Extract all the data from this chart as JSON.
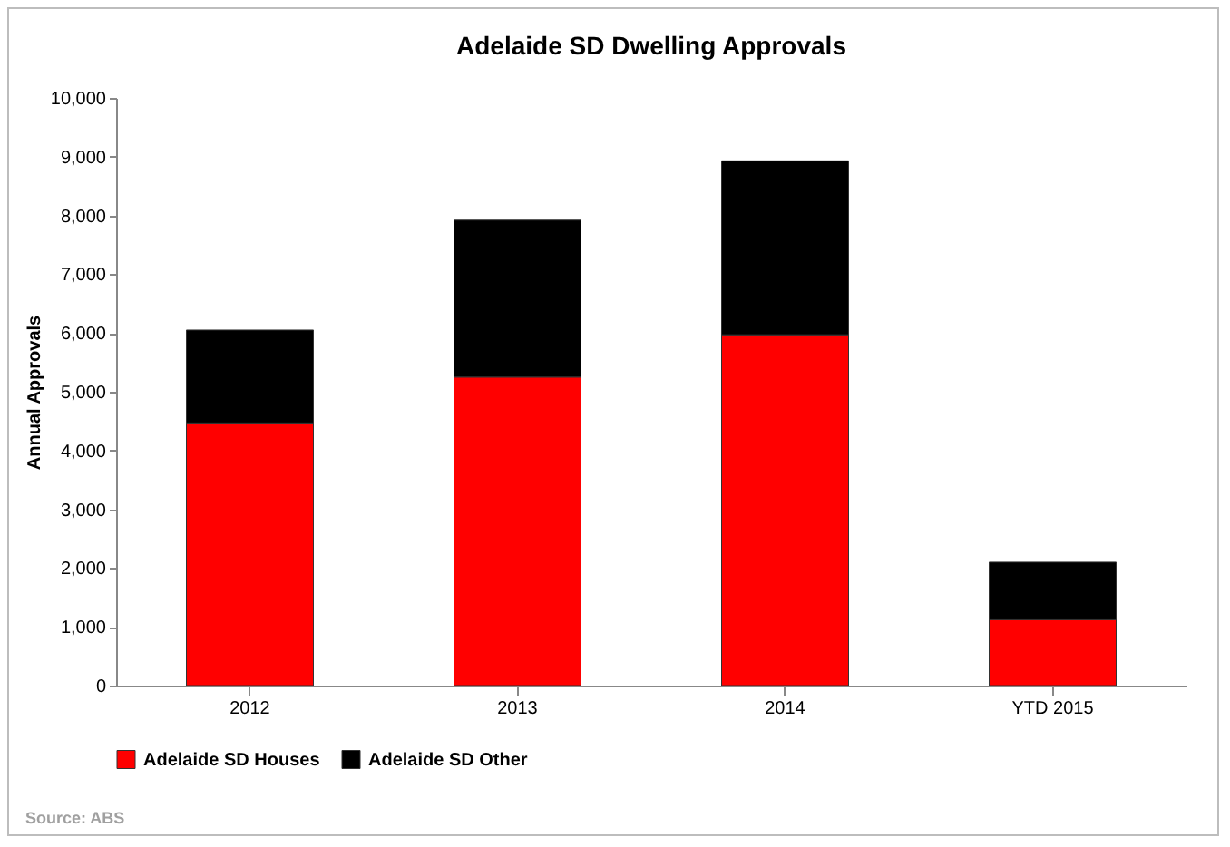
{
  "chart_data": {
    "type": "bar",
    "title": "Adelaide SD Dwelling Approvals",
    "ylabel": "Annual Approvals",
    "categories": [
      "2012",
      "2013",
      "2014",
      "YTD 2015"
    ],
    "stacked": true,
    "series": [
      {
        "name": "Adelaide SD Houses",
        "color": "#ff0000",
        "values": [
          4470,
          5250,
          5970,
          1120
        ]
      },
      {
        "name": "Adelaide SD Other",
        "color": "#000000",
        "values": [
          1580,
          2670,
          2960,
          980
        ]
      }
    ],
    "ylim": [
      0,
      10000
    ],
    "yticks": [
      0,
      {
        "value": 1000,
        "label": "1,000"
      },
      {
        "value": 2000,
        "label": "2,000"
      },
      {
        "value": 3000,
        "label": "3,000"
      },
      {
        "value": 4000,
        "label": "4,000"
      },
      {
        "value": 5000,
        "label": "5,000"
      },
      {
        "value": 6000,
        "label": "6,000"
      },
      {
        "value": 7000,
        "label": "7,000"
      },
      {
        "value": 8000,
        "label": "8,000"
      },
      {
        "value": 9000,
        "label": "9,000"
      },
      {
        "value": 10000,
        "label": "10,000"
      }
    ],
    "grid": false,
    "legend": "bottom",
    "annotations": [
      "Source: ABS"
    ]
  }
}
